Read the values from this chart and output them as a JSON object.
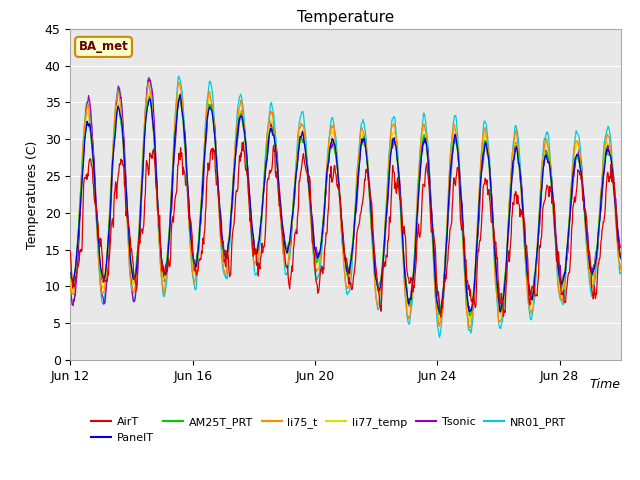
{
  "title": "Temperature",
  "ylabel": "Temperatures (C)",
  "xlabel": "Time",
  "ylim": [
    0,
    45
  ],
  "yticks": [
    0,
    5,
    10,
    15,
    20,
    25,
    30,
    35,
    40,
    45
  ],
  "xtick_labels": [
    "Jun 12",
    "Jun 16",
    "Jun 20",
    "Jun 24",
    "Jun 28"
  ],
  "series_colors": {
    "AirT": "#dd0000",
    "PanelT": "#0000dd",
    "AM25T_PRT": "#00cc00",
    "li75_t": "#ff8800",
    "li77_temp": "#dddd00",
    "Tsonic": "#9900bb",
    "NR01_PRT": "#00ccdd"
  },
  "legend_label": "BA_met",
  "legend_box_facecolor": "#ffffcc",
  "legend_box_edgecolor": "#cc8800",
  "legend_text_color": "#660000",
  "plot_bg_color": "#e8e8e8",
  "fig_bg_color": "#ffffff",
  "n_points": 1000,
  "title_fontsize": 11,
  "label_fontsize": 9,
  "tick_fontsize": 9
}
